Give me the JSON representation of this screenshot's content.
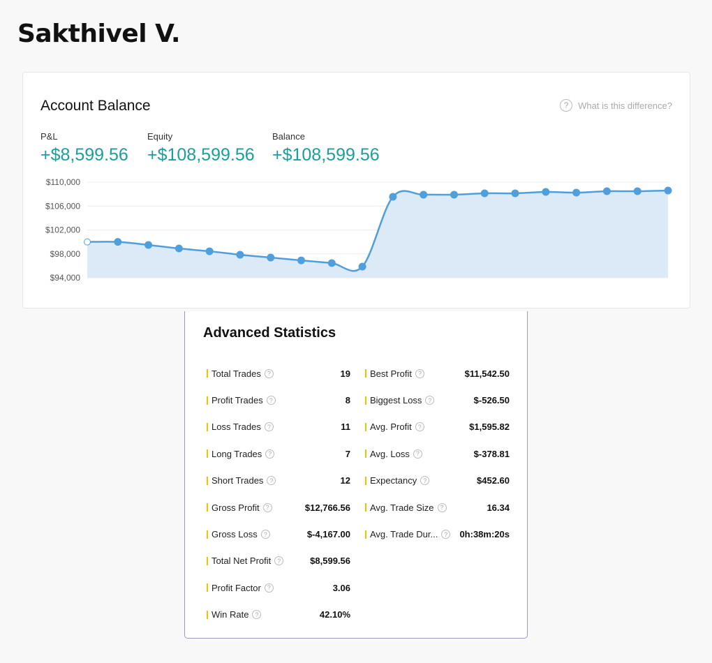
{
  "user_name": "Sakthivel V.",
  "account": {
    "title": "Account Balance",
    "help": "What is this difference?",
    "metrics": [
      {
        "label": "P&L",
        "value": "+$8,599.56"
      },
      {
        "label": "Equity",
        "value": "+$108,599.56"
      },
      {
        "label": "Balance",
        "value": "+$108,599.56"
      }
    ]
  },
  "chart_data": {
    "type": "area",
    "title": "Account Balance",
    "ylim": [
      94000,
      110000
    ],
    "yticks": [
      "$110,000",
      "$106,000",
      "$102,000",
      "$98,000",
      "$94,000"
    ],
    "ytick_values": [
      110000,
      106000,
      102000,
      98000,
      94000
    ],
    "values": [
      100000,
      100000,
      99490,
      98900,
      98430,
      97850,
      97380,
      96900,
      96450,
      95870,
      107550,
      107900,
      107900,
      108130,
      108130,
      108360,
      108250,
      108480,
      108480,
      108600
    ],
    "line_color": "#4f9fdc",
    "fill_color": "#dbeaf6"
  },
  "stats": {
    "title": "Advanced Statistics",
    "left": [
      {
        "k": "Total Trades",
        "v": "19"
      },
      {
        "k": "Profit Trades",
        "v": "8"
      },
      {
        "k": "Loss Trades",
        "v": "11"
      },
      {
        "k": "Long Trades",
        "v": "7"
      },
      {
        "k": "Short Trades",
        "v": "12"
      },
      {
        "k": "Gross Profit",
        "v": "$12,766.56"
      },
      {
        "k": "Gross Loss",
        "v": "$-4,167.00"
      },
      {
        "k": "Total Net Profit",
        "v": "$8,599.56"
      },
      {
        "k": "Profit Factor",
        "v": "3.06"
      },
      {
        "k": "Win Rate",
        "v": "42.10%"
      }
    ],
    "right": [
      {
        "k": "Best Profit",
        "v": "$11,542.50"
      },
      {
        "k": "Biggest Loss",
        "v": "$-526.50"
      },
      {
        "k": "Avg. Profit",
        "v": "$1,595.82"
      },
      {
        "k": "Avg. Loss",
        "v": "$-378.81"
      },
      {
        "k": "Expectancy",
        "v": "$452.60"
      },
      {
        "k": "Avg. Trade Size",
        "v": "16.34"
      },
      {
        "k": "Avg. Trade Dur...",
        "v": "0h:38m:20s"
      }
    ]
  }
}
